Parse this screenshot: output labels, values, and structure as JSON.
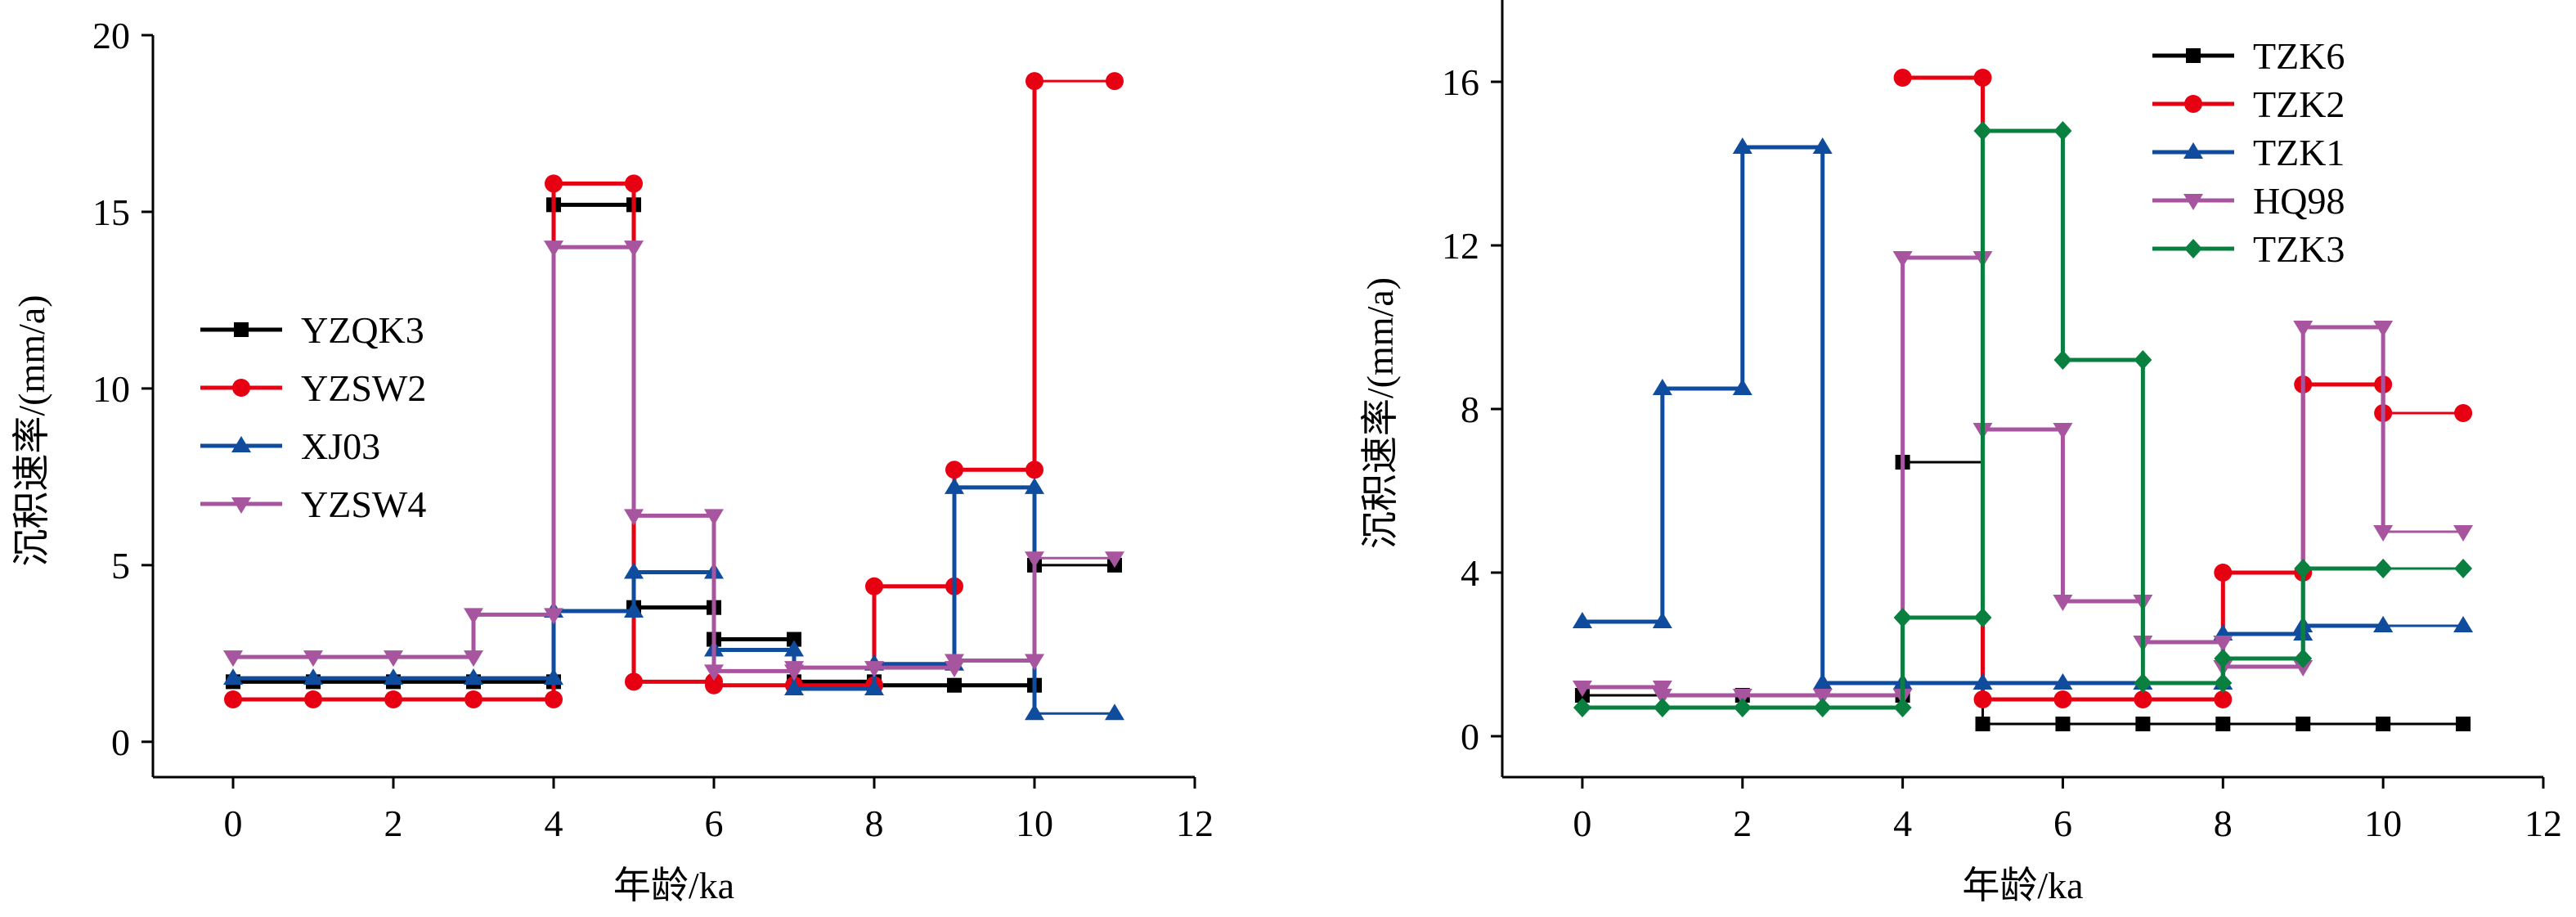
{
  "chart_data": [
    {
      "type": "line",
      "step": true,
      "xlabel": "年龄/ka",
      "ylabel": "沉积速率/(mm/a)",
      "xlim": [
        -1,
        12
      ],
      "ylim": [
        -1,
        20
      ],
      "xticks": [
        0,
        2,
        4,
        6,
        8,
        10,
        12
      ],
      "yticks": [
        0,
        5,
        10,
        15,
        20
      ],
      "legend_position": "center-left",
      "series": [
        {
          "name": "YZQK3",
          "color": "#000000",
          "marker": "square",
          "steps": [
            [
              0,
              4,
              1.7
            ],
            [
              4,
              5,
              15.2
            ],
            [
              5,
              6,
              3.8
            ],
            [
              6,
              7,
              2.9
            ],
            [
              7,
              8,
              1.7
            ],
            [
              8,
              10,
              1.6
            ]
          ],
          "tail": [
            10,
            11,
            5.0
          ],
          "tail_connect": false
        },
        {
          "name": "YZSW2",
          "color": "#e60012",
          "marker": "circle",
          "steps": [
            [
              0,
              4,
              1.2
            ],
            [
              4,
              5,
              15.8
            ],
            [
              5,
              6,
              1.7
            ],
            [
              6,
              8,
              1.6
            ],
            [
              8,
              9,
              4.4
            ],
            [
              9,
              10,
              7.7
            ]
          ],
          "tail": [
            10,
            11,
            18.7
          ],
          "tail_connect": true
        },
        {
          "name": "XJ03",
          "color": "#0f4c9e",
          "marker": "triangle-up",
          "steps": [
            [
              0,
              4,
              1.8
            ],
            [
              4,
              5,
              3.7
            ],
            [
              5,
              6,
              4.8
            ],
            [
              6,
              7,
              2.6
            ],
            [
              7,
              8,
              1.5
            ],
            [
              8,
              9,
              2.2
            ],
            [
              9,
              10,
              7.2
            ]
          ],
          "tail": [
            10,
            11,
            0.8
          ],
          "tail_connect": true
        },
        {
          "name": "YZSW4",
          "color": "#a855a0",
          "marker": "triangle-down",
          "steps": [
            [
              0,
              3,
              2.4
            ],
            [
              3,
              4,
              3.6
            ],
            [
              4,
              5,
              14.0
            ],
            [
              5,
              6,
              6.4
            ],
            [
              6,
              7,
              2.0
            ],
            [
              7,
              9,
              2.1
            ],
            [
              9,
              10,
              2.3
            ]
          ],
          "tail": [
            10,
            11,
            5.2
          ],
          "tail_connect": true
        }
      ]
    },
    {
      "type": "line",
      "step": true,
      "xlabel": "年龄/ka",
      "ylabel": "沉积速率/(mm/a)",
      "xlim": [
        -1,
        12
      ],
      "ylim": [
        -1,
        18
      ],
      "xticks": [
        0,
        2,
        4,
        6,
        8,
        10,
        12
      ],
      "yticks": [
        0,
        4,
        8,
        12,
        16
      ],
      "legend_position": "top-right",
      "series": [
        {
          "name": "TZK6",
          "color": "#000000",
          "marker": "square",
          "thin": true,
          "steps": [
            [
              0,
              2,
              1.0
            ],
            [
              2,
              4,
              1.0
            ],
            [
              4,
              5,
              6.7
            ],
            [
              5,
              11,
              0.3
            ]
          ],
          "marker_x": [
            0,
            2,
            4,
            5,
            6,
            7,
            8,
            9,
            10,
            11
          ]
        },
        {
          "name": "TZK2",
          "color": "#e60012",
          "marker": "circle",
          "steps": [
            [
              4,
              5,
              16.1
            ],
            [
              5,
              8,
              0.9
            ],
            [
              8,
              9,
              4.0
            ],
            [
              9,
              10,
              8.6
            ]
          ],
          "tail": [
            10,
            11,
            7.9
          ],
          "tail_connect": true
        },
        {
          "name": "TZK1",
          "color": "#0f4c9e",
          "marker": "triangle-up",
          "steps": [
            [
              0,
              1,
              2.8
            ],
            [
              1,
              2,
              8.5
            ],
            [
              2,
              3,
              14.4
            ],
            [
              3,
              8,
              1.3
            ],
            [
              8,
              9,
              2.5
            ],
            [
              9,
              10,
              2.7
            ]
          ],
          "tail": [
            10,
            11,
            2.7
          ],
          "tail_connect": true
        },
        {
          "name": "HQ98",
          "color": "#a855a0",
          "marker": "triangle-down",
          "steps": [
            [
              0,
              1,
              1.2
            ],
            [
              1,
              4,
              1.0
            ],
            [
              4,
              5,
              11.7
            ],
            [
              5,
              6,
              7.5
            ],
            [
              6,
              7,
              3.3
            ],
            [
              7,
              8,
              2.3
            ],
            [
              8,
              9,
              1.7
            ],
            [
              9,
              10,
              10.0
            ]
          ],
          "tail": [
            10,
            11,
            5.0
          ],
          "tail_connect": true
        },
        {
          "name": "TZK3",
          "color": "#0a8040",
          "marker": "diamond",
          "steps": [
            [
              0,
              4,
              0.7
            ],
            [
              4,
              5,
              2.9
            ],
            [
              5,
              6,
              14.8
            ],
            [
              6,
              7,
              9.2
            ],
            [
              7,
              8,
              1.3
            ],
            [
              8,
              9,
              1.9
            ],
            [
              9,
              10,
              4.1
            ]
          ],
          "tail": [
            10,
            11,
            4.1
          ],
          "tail_connect": true
        }
      ]
    }
  ]
}
